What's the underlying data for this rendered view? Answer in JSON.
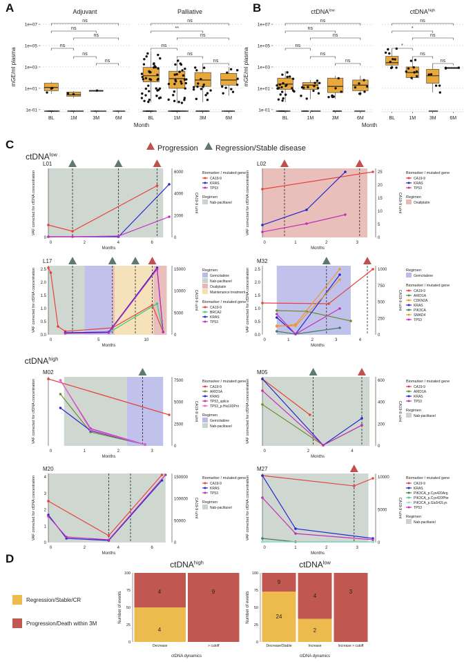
{
  "panel_labels": {
    "A": "A",
    "B": "B",
    "C": "C",
    "D": "D"
  },
  "colors": {
    "box_fill": "#E8A93A",
    "progression": "#C0504D",
    "regression": "#5E7A6B",
    "bg_nab": "#C9D4CC",
    "bg_gem": "#B9BBEA",
    "bg_oxa": "#E7B8B4",
    "bg_maint": "#F4DFB2",
    "ca199": "#E8413C",
    "kras": "#2426CF",
    "tp53": "#C42DB8",
    "arid1a": "#6E8B2E",
    "cdkn2a": "#F0962E",
    "brca2": "#2FD08A",
    "pik3ca": "#3F7F5D",
    "smad4": "#F0962E",
    "reg_good": "#EDBA4E",
    "prog_bad": "#C05750"
  },
  "chart_data": [
    {
      "type": "box",
      "id": "A-adj",
      "title": "Adjuvant",
      "ylabel": "mGE/ml plasma",
      "xlabel": "Month",
      "categories": [
        "BL",
        "1M",
        "3M",
        "6M"
      ],
      "yticks": [
        "1e-01",
        "1e+01",
        "1e+03",
        "1e+05",
        "1e+07"
      ],
      "comparisons": [
        {
          "pair": [
            "BL",
            "6M"
          ],
          "label": "ns"
        },
        {
          "pair": [
            "BL",
            "3M"
          ],
          "label": "ns"
        },
        {
          "pair": [
            "1M",
            "6M"
          ],
          "label": "ns"
        },
        {
          "pair": [
            "BL",
            "1M"
          ],
          "label": "ns"
        },
        {
          "pair": [
            "1M",
            "3M"
          ],
          "label": "ns"
        },
        {
          "pair": [
            "3M",
            "6M"
          ],
          "label": "ns"
        }
      ],
      "boxes": [
        {
          "q1": 6,
          "med": 12,
          "q3": 30,
          "lo": 3,
          "hi": 40
        },
        {
          "q1": 1.8,
          "med": 2.5,
          "q3": 4.5,
          "lo": 1.2,
          "hi": 5.5
        },
        {
          "q1": 6,
          "med": 6,
          "q3": 6.5,
          "lo": 6,
          "hi": 6.5
        },
        null
      ]
    },
    {
      "type": "box",
      "id": "A-pal",
      "title": "Palliative",
      "categories": [
        "BL",
        "1M",
        "3M",
        "6M"
      ],
      "comparisons": [
        {
          "pair": [
            "BL",
            "6M"
          ],
          "label": "ns"
        },
        {
          "pair": [
            "BL",
            "3M"
          ],
          "label": "**"
        },
        {
          "pair": [
            "1M",
            "6M"
          ],
          "label": "ns"
        },
        {
          "pair": [
            "BL",
            "1M"
          ],
          "label": "ns"
        },
        {
          "pair": [
            "1M",
            "3M"
          ],
          "label": "ns"
        },
        {
          "pair": [
            "3M",
            "6M"
          ],
          "label": "ns"
        }
      ],
      "boxes": [
        {
          "q1": 40,
          "med": 150,
          "q3": 900,
          "lo": 0.5,
          "hi": 30000
        },
        {
          "q1": 10,
          "med": 80,
          "q3": 400,
          "lo": 0.4,
          "hi": 5000
        },
        {
          "q1": 15,
          "med": 60,
          "q3": 300,
          "lo": 0.5,
          "hi": 2000
        },
        {
          "q1": 20,
          "med": 60,
          "q3": 250,
          "lo": 2,
          "hi": 1000
        }
      ]
    },
    {
      "type": "box",
      "id": "B-low",
      "title": "ctDNA",
      "title_sup": "low",
      "ylabel": "mGE/ml plasma",
      "xlabel": "Month",
      "categories": [
        "BL",
        "1M",
        "3M",
        "6M"
      ],
      "yticks": [
        "1e-01",
        "1e+01",
        "1e+03",
        "1e+05",
        "1e+07"
      ],
      "comparisons": [
        {
          "pair": [
            "BL",
            "6M"
          ],
          "label": "ns"
        },
        {
          "pair": [
            "BL",
            "3M"
          ],
          "label": "ns"
        },
        {
          "pair": [
            "1M",
            "6M"
          ],
          "label": "ns"
        },
        {
          "pair": [
            "BL",
            "1M"
          ],
          "label": "ns"
        },
        {
          "pair": [
            "1M",
            "3M"
          ],
          "label": "ns"
        },
        {
          "pair": [
            "3M",
            "6M"
          ],
          "label": "ns"
        }
      ],
      "boxes": [
        {
          "q1": 8,
          "med": 25,
          "q3": 90,
          "lo": 0.5,
          "hi": 400
        },
        {
          "q1": 8,
          "med": 20,
          "q3": 35,
          "lo": 1,
          "hi": 60
        },
        {
          "q1": 4,
          "med": 15,
          "q3": 90,
          "lo": 1,
          "hi": 150
        },
        {
          "q1": 6,
          "med": 20,
          "q3": 60,
          "lo": 2,
          "hi": 150
        }
      ]
    },
    {
      "type": "box",
      "id": "B-high",
      "title": "ctDNA",
      "title_sup": "high",
      "categories": [
        "BL",
        "1M",
        "3M",
        "6M"
      ],
      "comparisons": [
        {
          "pair": [
            "BL",
            "6M"
          ],
          "label": "ns"
        },
        {
          "pair": [
            "BL",
            "3M"
          ],
          "label": "*"
        },
        {
          "pair": [
            "1M",
            "6M"
          ],
          "label": "ns"
        },
        {
          "pair": [
            "BL",
            "1M"
          ],
          "label": "*"
        },
        {
          "pair": [
            "1M",
            "3M"
          ],
          "label": "ns"
        },
        {
          "pair": [
            "3M",
            "6M"
          ],
          "label": "ns"
        }
      ],
      "boxes": [
        {
          "q1": 1500,
          "med": 2500,
          "q3": 10000,
          "lo": 800,
          "hi": 60000
        },
        {
          "q1": 100,
          "med": 300,
          "q3": 1000,
          "lo": 60,
          "hi": 7000
        },
        {
          "q1": 30,
          "med": 150,
          "q3": 600,
          "lo": 4,
          "hi": 2000
        },
        {
          "q1": 700,
          "med": 800,
          "q3": 900,
          "lo": 700,
          "hi": 900
        }
      ]
    },
    {
      "type": "stacked_bar",
      "id": "D-high",
      "title": "ctDNA",
      "title_sup": "high",
      "ylabel": "Number of events",
      "xlabel": "ctDNA dynamics",
      "yticks": [
        "0",
        "25",
        "50",
        "75",
        "100"
      ],
      "categories": [
        "Decrease",
        "> cutoff"
      ],
      "series": [
        {
          "name": "Regression/Stable/CR",
          "values": [
            4,
            0
          ],
          "pct": [
            50,
            0
          ]
        },
        {
          "name": "Progression/Death within 3M",
          "values": [
            4,
            9
          ],
          "pct": [
            50,
            100
          ]
        }
      ]
    },
    {
      "type": "stacked_bar",
      "id": "D-low",
      "title": "ctDNA",
      "title_sup": "low",
      "ylabel": "Number of events",
      "xlabel": "ctDNA dynamics",
      "yticks": [
        "0",
        "25",
        "50",
        "75",
        "100"
      ],
      "categories": [
        "Decrease/Stable",
        "Increase",
        "Increase > cutoff"
      ],
      "series": [
        {
          "name": "Regression/Stable/CR",
          "values": [
            24,
            2,
            0
          ],
          "pct": [
            72.7,
            33.3,
            0
          ]
        },
        {
          "name": "Progression/Death within 3M",
          "values": [
            9,
            4,
            3
          ],
          "pct": [
            27.3,
            66.7,
            100
          ]
        }
      ]
    }
  ],
  "panelA": {
    "title_adj": "Adjuvant",
    "title_pal": "Palliative",
    "ylabel": "mGE/ml plasma",
    "xlabel": "Month",
    "yticks": [
      "1e-01",
      "1e+01",
      "1e+03",
      "1e+05",
      "1e+07"
    ],
    "cats": [
      "BL",
      "1M",
      "3M",
      "6M"
    ]
  },
  "panelB": {
    "title_low": "ctDNA",
    "sup_low": "low",
    "title_high": "ctDNA",
    "sup_high": "high",
    "ylabel": "mGE/ml plasma",
    "xlabel": "Month"
  },
  "panelC": {
    "legend_prog": "Progression",
    "legend_reg": "Regression/Stable disease",
    "group_low": "ctDNA",
    "group_low_sup": "low",
    "group_high": "ctDNA",
    "group_high_sup": "high",
    "ylab": "VAF corrected for cfDNA concentration",
    "y2lab": "CA19-9 u/ml",
    "xlab": "Months",
    "bm_title": "Biomarker / mutated gene",
    "reg_title": "Regimen",
    "plots": [
      {
        "id": "L01",
        "genes": [
          "CA19-9",
          "KRAS",
          "TP53"
        ],
        "regimens": [
          "Nab-paclitaxel"
        ]
      },
      {
        "id": "L02",
        "genes": [
          "CA19-9",
          "KRAS",
          "TP53"
        ],
        "regimens": [
          "Oxaliplatin"
        ]
      },
      {
        "id": "L17",
        "regimens": [
          "Gemcitabine",
          "Nab-paclitaxel",
          "Oxaliplatin",
          "Maintenance treatment"
        ],
        "genes": [
          "CA19-9",
          "BRCA2",
          "KRAS",
          "TP53"
        ]
      },
      {
        "id": "M32",
        "regimens": [
          "Gemcitabine"
        ],
        "genes": [
          "CA19-9",
          "ARID1A",
          "CDKN2A",
          "KRAS",
          "PIK3CA",
          "SMAD4",
          "TP53"
        ]
      },
      {
        "id": "M02",
        "genes": [
          "CA19-9",
          "ARID1A",
          "KRAS",
          "TP53_splice",
          "TP53_p.His193Pro"
        ],
        "regimens": [
          "Gemcitabine",
          "Nab-paclitaxel"
        ]
      },
      {
        "id": "M05",
        "genes": [
          "CA19-9",
          "ARID1A",
          "KRAS",
          "TP53"
        ],
        "regimens": [
          "Nab-paclitaxel"
        ]
      },
      {
        "id": "M20",
        "genes": [
          "CA19-9",
          "KRAS",
          "TP53"
        ],
        "regimens": [
          "Nab-paclitaxel"
        ]
      },
      {
        "id": "M27",
        "genes": [
          "CA19-9",
          "KRAS",
          "PIK3CA_p.Cys420Arg",
          "PIK3CA_p.Cys420Phe",
          "PIK3CA_p.Glu542Lys",
          "TP53"
        ],
        "regimens": [
          "Nab-paclitaxel"
        ]
      }
    ]
  },
  "panelD": {
    "legend": [
      "Regression/Stable/CR",
      "Progression/Death within 3M"
    ],
    "high_title": "ctDNA",
    "high_sup": "high",
    "low_title": "ctDNA",
    "low_sup": "low",
    "ylabel": "Number of events",
    "xlabel": "ctDNA dynamics",
    "high_cats": [
      "Decrease",
      "> cutoff"
    ],
    "low_cats": [
      "Decrease/Stable",
      "Increase",
      "Increase > cutoff"
    ],
    "high_labels": [
      "4",
      "4",
      "9"
    ],
    "low_labels": [
      "9",
      "24",
      "4",
      "2",
      "3"
    ],
    "yticks": [
      "0",
      "25",
      "50",
      "75",
      "100"
    ]
  }
}
